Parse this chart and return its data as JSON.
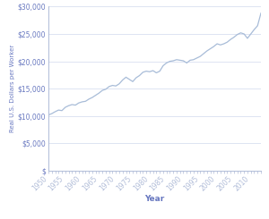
{
  "title": "",
  "xlabel": "Year",
  "ylabel": "Real U.S. Dollars per Worker",
  "xlim": [
    1950,
    2013
  ],
  "ylim": [
    0,
    30000
  ],
  "yticks": [
    0,
    5000,
    10000,
    15000,
    20000,
    25000,
    30000
  ],
  "xticks": [
    1950,
    1955,
    1960,
    1965,
    1970,
    1975,
    1980,
    1985,
    1990,
    1995,
    2000,
    2005,
    2010
  ],
  "line_color": "#a8bcd8",
  "axis_color": "#b0bcd8",
  "label_color": "#6878c0",
  "grid_color": "#d8dff0",
  "background_color": "#ffffff",
  "years": [
    1950,
    1951,
    1952,
    1953,
    1954,
    1955,
    1956,
    1957,
    1958,
    1959,
    1960,
    1961,
    1962,
    1963,
    1964,
    1965,
    1966,
    1967,
    1968,
    1969,
    1970,
    1971,
    1972,
    1973,
    1974,
    1975,
    1976,
    1977,
    1978,
    1979,
    1980,
    1981,
    1982,
    1983,
    1984,
    1985,
    1986,
    1987,
    1988,
    1989,
    1990,
    1991,
    1992,
    1993,
    1994,
    1995,
    1996,
    1997,
    1998,
    1999,
    2000,
    2001,
    2002,
    2003,
    2004,
    2005,
    2006,
    2007,
    2008,
    2009,
    2010,
    2011,
    2012,
    2013
  ],
  "values": [
    10200,
    10450,
    10800,
    11100,
    11000,
    11600,
    11900,
    12100,
    12000,
    12400,
    12600,
    12700,
    13100,
    13400,
    13800,
    14200,
    14700,
    14900,
    15400,
    15600,
    15500,
    15900,
    16600,
    17100,
    16700,
    16300,
    17000,
    17400,
    18000,
    18200,
    18100,
    18300,
    17900,
    18200,
    19200,
    19700,
    20000,
    20100,
    20300,
    20200,
    20100,
    19700,
    20200,
    20300,
    20600,
    20900,
    21400,
    21900,
    22300,
    22700,
    23200,
    23000,
    23200,
    23500,
    24000,
    24400,
    24900,
    25200,
    25000,
    24200,
    25000,
    25800,
    26500,
    28800
  ]
}
